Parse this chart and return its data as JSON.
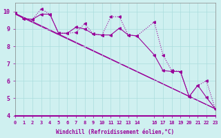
{
  "xlabel": "Windchill (Refroidissement éolien,°C)",
  "ylabel": "",
  "bg_color": "#cff0f0",
  "line_color": "#990099",
  "grid_color": "#aadddd",
  "axis_label_color": "#990099",
  "tick_color": "#990099",
  "xlim": [
    0,
    23
  ],
  "ylim": [
    4,
    10.5
  ],
  "yticks": [
    4,
    5,
    6,
    7,
    8,
    9,
    10
  ],
  "xticks": [
    0,
    1,
    2,
    3,
    4,
    5,
    6,
    7,
    8,
    9,
    10,
    11,
    12,
    13,
    14,
    16,
    17,
    18,
    19,
    20,
    21,
    22,
    23
  ],
  "series1_x": [
    0,
    1,
    2,
    3,
    4,
    5,
    6,
    7,
    8,
    9,
    10,
    11,
    12,
    13,
    14,
    16,
    17,
    18,
    19,
    20,
    21,
    22,
    23
  ],
  "series1_y": [
    9.9,
    9.6,
    9.55,
    9.85,
    9.85,
    8.75,
    8.75,
    9.1,
    9.0,
    8.7,
    8.65,
    8.65,
    9.05,
    8.65,
    8.6,
    7.5,
    6.6,
    6.55,
    6.55,
    5.1,
    5.75,
    5.05,
    4.4
  ],
  "series2_x": [
    0,
    1,
    2,
    3,
    4,
    5,
    6,
    7,
    8,
    9,
    10,
    11,
    12,
    13,
    14,
    16,
    17,
    18,
    19,
    20,
    21,
    22,
    23
  ],
  "series2_y": [
    9.9,
    9.6,
    9.55,
    10.15,
    9.85,
    8.75,
    8.75,
    8.8,
    9.3,
    8.7,
    8.65,
    9.7,
    9.7,
    8.65,
    8.6,
    9.4,
    7.5,
    6.6,
    6.55,
    5.1,
    5.75,
    6.0,
    4.4
  ],
  "series3_x": [
    0,
    23
  ],
  "series3_y": [
    9.9,
    4.4
  ],
  "series4_x": [
    0,
    23
  ],
  "series4_y": [
    9.85,
    4.4
  ]
}
